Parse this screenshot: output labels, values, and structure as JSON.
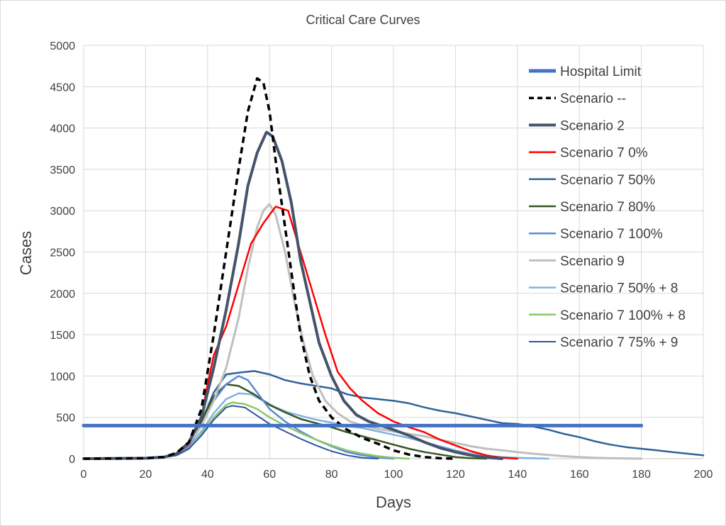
{
  "chart_data": {
    "type": "line",
    "title": "Critical Care Curves",
    "xlabel": "Days",
    "ylabel": "Cases",
    "xlim": [
      0,
      200
    ],
    "ylim": [
      0,
      5000
    ],
    "x_ticks": [
      0,
      20,
      40,
      60,
      80,
      100,
      120,
      140,
      160,
      180,
      200
    ],
    "y_ticks": [
      0,
      500,
      1000,
      1500,
      2000,
      2500,
      3000,
      3500,
      4000,
      4500,
      5000
    ],
    "grid": "vertical and horizontal major gridlines",
    "legend_position": "top-right inside plot",
    "series": [
      {
        "name": "Hospital Limit",
        "color": "#4472C4",
        "dash": "solid",
        "width": 5,
        "points": [
          [
            0,
            400
          ],
          [
            180,
            400
          ]
        ]
      },
      {
        "name": "Scenario --",
        "color": "#000000",
        "dash": "dashed",
        "width": 3.5,
        "points": [
          [
            0,
            0
          ],
          [
            20,
            5
          ],
          [
            26,
            20
          ],
          [
            30,
            70
          ],
          [
            34,
            200
          ],
          [
            38,
            600
          ],
          [
            42,
            1500
          ],
          [
            46,
            2500
          ],
          [
            50,
            3500
          ],
          [
            53,
            4200
          ],
          [
            56,
            4600
          ],
          [
            58,
            4550
          ],
          [
            60,
            4200
          ],
          [
            62,
            3600
          ],
          [
            65,
            2800
          ],
          [
            68,
            2000
          ],
          [
            70,
            1500
          ],
          [
            73,
            1000
          ],
          [
            76,
            700
          ],
          [
            80,
            500
          ],
          [
            85,
            350
          ],
          [
            90,
            250
          ],
          [
            95,
            180
          ],
          [
            100,
            100
          ],
          [
            105,
            50
          ],
          [
            110,
            20
          ],
          [
            115,
            5
          ],
          [
            120,
            0
          ]
        ]
      },
      {
        "name": "Scenario 2",
        "color": "#44546A",
        "dash": "solid",
        "width": 4,
        "points": [
          [
            0,
            0
          ],
          [
            20,
            5
          ],
          [
            26,
            20
          ],
          [
            30,
            60
          ],
          [
            34,
            200
          ],
          [
            38,
            500
          ],
          [
            42,
            1100
          ],
          [
            46,
            1800
          ],
          [
            50,
            2600
          ],
          [
            53,
            3300
          ],
          [
            56,
            3700
          ],
          [
            59,
            3950
          ],
          [
            61,
            3900
          ],
          [
            64,
            3600
          ],
          [
            67,
            3100
          ],
          [
            70,
            2400
          ],
          [
            73,
            1900
          ],
          [
            76,
            1400
          ],
          [
            80,
            1000
          ],
          [
            84,
            700
          ],
          [
            88,
            530
          ],
          [
            92,
            450
          ],
          [
            96,
            400
          ],
          [
            100,
            350
          ],
          [
            105,
            280
          ],
          [
            110,
            200
          ],
          [
            115,
            130
          ],
          [
            120,
            80
          ],
          [
            125,
            40
          ],
          [
            130,
            15
          ],
          [
            135,
            0
          ]
        ]
      },
      {
        "name": "Scenario 7 0%",
        "color": "#FF0000",
        "dash": "solid",
        "width": 2.5,
        "points": [
          [
            0,
            0
          ],
          [
            20,
            5
          ],
          [
            26,
            20
          ],
          [
            30,
            60
          ],
          [
            34,
            180
          ],
          [
            38,
            500
          ],
          [
            40,
            900
          ],
          [
            42,
            1250
          ],
          [
            46,
            1600
          ],
          [
            50,
            2100
          ],
          [
            54,
            2600
          ],
          [
            58,
            2850
          ],
          [
            60,
            2950
          ],
          [
            62,
            3050
          ],
          [
            66,
            3000
          ],
          [
            70,
            2500
          ],
          [
            74,
            2000
          ],
          [
            78,
            1500
          ],
          [
            82,
            1050
          ],
          [
            86,
            850
          ],
          [
            90,
            700
          ],
          [
            95,
            550
          ],
          [
            100,
            450
          ],
          [
            105,
            380
          ],
          [
            110,
            320
          ],
          [
            115,
            230
          ],
          [
            120,
            160
          ],
          [
            125,
            90
          ],
          [
            130,
            40
          ],
          [
            135,
            10
          ],
          [
            140,
            0
          ]
        ]
      },
      {
        "name": "Scenario 7 50%",
        "color": "#2F6397",
        "dash": "solid",
        "width": 2.5,
        "points": [
          [
            0,
            0
          ],
          [
            20,
            5
          ],
          [
            26,
            20
          ],
          [
            30,
            60
          ],
          [
            34,
            180
          ],
          [
            38,
            450
          ],
          [
            42,
            800
          ],
          [
            46,
            1020
          ],
          [
            50,
            1040
          ],
          [
            55,
            1060
          ],
          [
            60,
            1020
          ],
          [
            65,
            950
          ],
          [
            70,
            910
          ],
          [
            75,
            880
          ],
          [
            80,
            850
          ],
          [
            85,
            780
          ],
          [
            90,
            740
          ],
          [
            95,
            720
          ],
          [
            100,
            700
          ],
          [
            105,
            670
          ],
          [
            110,
            620
          ],
          [
            115,
            580
          ],
          [
            120,
            550
          ],
          [
            125,
            510
          ],
          [
            130,
            470
          ],
          [
            135,
            430
          ],
          [
            140,
            420
          ],
          [
            145,
            390
          ],
          [
            150,
            350
          ],
          [
            155,
            300
          ],
          [
            160,
            260
          ],
          [
            165,
            210
          ],
          [
            170,
            170
          ],
          [
            175,
            140
          ],
          [
            180,
            120
          ],
          [
            185,
            100
          ],
          [
            190,
            80
          ],
          [
            195,
            60
          ],
          [
            200,
            40
          ]
        ]
      },
      {
        "name": "Scenario 7 80%",
        "color": "#375623",
        "dash": "solid",
        "width": 2.5,
        "points": [
          [
            0,
            0
          ],
          [
            20,
            5
          ],
          [
            26,
            20
          ],
          [
            30,
            60
          ],
          [
            34,
            200
          ],
          [
            38,
            450
          ],
          [
            42,
            750
          ],
          [
            46,
            900
          ],
          [
            50,
            880
          ],
          [
            55,
            780
          ],
          [
            60,
            650
          ],
          [
            65,
            560
          ],
          [
            70,
            480
          ],
          [
            75,
            430
          ],
          [
            80,
            380
          ],
          [
            85,
            320
          ],
          [
            90,
            270
          ],
          [
            95,
            220
          ],
          [
            100,
            170
          ],
          [
            105,
            120
          ],
          [
            110,
            80
          ],
          [
            115,
            50
          ],
          [
            120,
            20
          ],
          [
            125,
            5
          ],
          [
            130,
            0
          ]
        ]
      },
      {
        "name": "Scenario 7 100%",
        "color": "#5B8BD6",
        "dash": "solid",
        "width": 2.5,
        "points": [
          [
            0,
            0
          ],
          [
            20,
            5
          ],
          [
            26,
            15
          ],
          [
            30,
            50
          ],
          [
            34,
            150
          ],
          [
            38,
            400
          ],
          [
            42,
            700
          ],
          [
            46,
            900
          ],
          [
            50,
            1000
          ],
          [
            53,
            950
          ],
          [
            56,
            800
          ],
          [
            60,
            600
          ],
          [
            65,
            450
          ],
          [
            70,
            330
          ],
          [
            75,
            230
          ],
          [
            80,
            150
          ],
          [
            85,
            80
          ],
          [
            90,
            40
          ],
          [
            95,
            15
          ],
          [
            100,
            0
          ]
        ]
      },
      {
        "name": "Scenario 9",
        "color": "#BFBFBF",
        "dash": "solid",
        "width": 3,
        "points": [
          [
            0,
            0
          ],
          [
            20,
            5
          ],
          [
            26,
            20
          ],
          [
            30,
            60
          ],
          [
            34,
            180
          ],
          [
            38,
            400
          ],
          [
            42,
            700
          ],
          [
            46,
            1100
          ],
          [
            50,
            1700
          ],
          [
            53,
            2300
          ],
          [
            56,
            2800
          ],
          [
            58,
            3000
          ],
          [
            60,
            3080
          ],
          [
            62,
            2950
          ],
          [
            65,
            2500
          ],
          [
            68,
            1900
          ],
          [
            71,
            1400
          ],
          [
            74,
            1000
          ],
          [
            78,
            700
          ],
          [
            82,
            550
          ],
          [
            86,
            450
          ],
          [
            90,
            400
          ],
          [
            95,
            360
          ],
          [
            100,
            330
          ],
          [
            105,
            300
          ],
          [
            110,
            270
          ],
          [
            115,
            230
          ],
          [
            120,
            190
          ],
          [
            125,
            150
          ],
          [
            130,
            120
          ],
          [
            135,
            100
          ],
          [
            140,
            80
          ],
          [
            145,
            60
          ],
          [
            150,
            45
          ],
          [
            155,
            30
          ],
          [
            160,
            20
          ],
          [
            165,
            10
          ],
          [
            170,
            5
          ],
          [
            180,
            0
          ]
        ]
      },
      {
        "name": "Scenario 7 50% + 8",
        "color": "#7FB2E5",
        "dash": "solid",
        "width": 2.5,
        "points": [
          [
            0,
            0
          ],
          [
            20,
            5
          ],
          [
            26,
            15
          ],
          [
            30,
            45
          ],
          [
            34,
            130
          ],
          [
            38,
            330
          ],
          [
            42,
            550
          ],
          [
            46,
            720
          ],
          [
            50,
            790
          ],
          [
            54,
            780
          ],
          [
            58,
            700
          ],
          [
            62,
            620
          ],
          [
            66,
            560
          ],
          [
            70,
            520
          ],
          [
            74,
            480
          ],
          [
            78,
            450
          ],
          [
            82,
            420
          ],
          [
            86,
            390
          ],
          [
            90,
            370
          ],
          [
            95,
            330
          ],
          [
            100,
            290
          ],
          [
            105,
            250
          ],
          [
            110,
            200
          ],
          [
            115,
            150
          ],
          [
            120,
            100
          ],
          [
            125,
            60
          ],
          [
            130,
            30
          ],
          [
            140,
            10
          ],
          [
            150,
            0
          ]
        ]
      },
      {
        "name": "Scenario 7 100% + 8",
        "color": "#8BC867",
        "dash": "solid",
        "width": 2.5,
        "points": [
          [
            0,
            0
          ],
          [
            20,
            5
          ],
          [
            26,
            15
          ],
          [
            30,
            40
          ],
          [
            34,
            120
          ],
          [
            38,
            300
          ],
          [
            42,
            500
          ],
          [
            46,
            650
          ],
          [
            48,
            680
          ],
          [
            52,
            660
          ],
          [
            56,
            600
          ],
          [
            60,
            500
          ],
          [
            65,
            400
          ],
          [
            70,
            310
          ],
          [
            75,
            230
          ],
          [
            80,
            160
          ],
          [
            85,
            100
          ],
          [
            90,
            60
          ],
          [
            95,
            30
          ],
          [
            100,
            10
          ],
          [
            105,
            0
          ]
        ]
      },
      {
        "name": "Scenario 7 75% + 9",
        "color": "#2F52A0",
        "dash": "solid",
        "width": 2,
        "points": [
          [
            0,
            0
          ],
          [
            20,
            5
          ],
          [
            26,
            15
          ],
          [
            30,
            40
          ],
          [
            34,
            120
          ],
          [
            38,
            280
          ],
          [
            42,
            470
          ],
          [
            46,
            620
          ],
          [
            48,
            640
          ],
          [
            52,
            620
          ],
          [
            56,
            520
          ],
          [
            60,
            420
          ],
          [
            65,
            330
          ],
          [
            70,
            240
          ],
          [
            75,
            160
          ],
          [
            80,
            90
          ],
          [
            85,
            40
          ],
          [
            90,
            10
          ],
          [
            95,
            0
          ]
        ]
      }
    ]
  }
}
